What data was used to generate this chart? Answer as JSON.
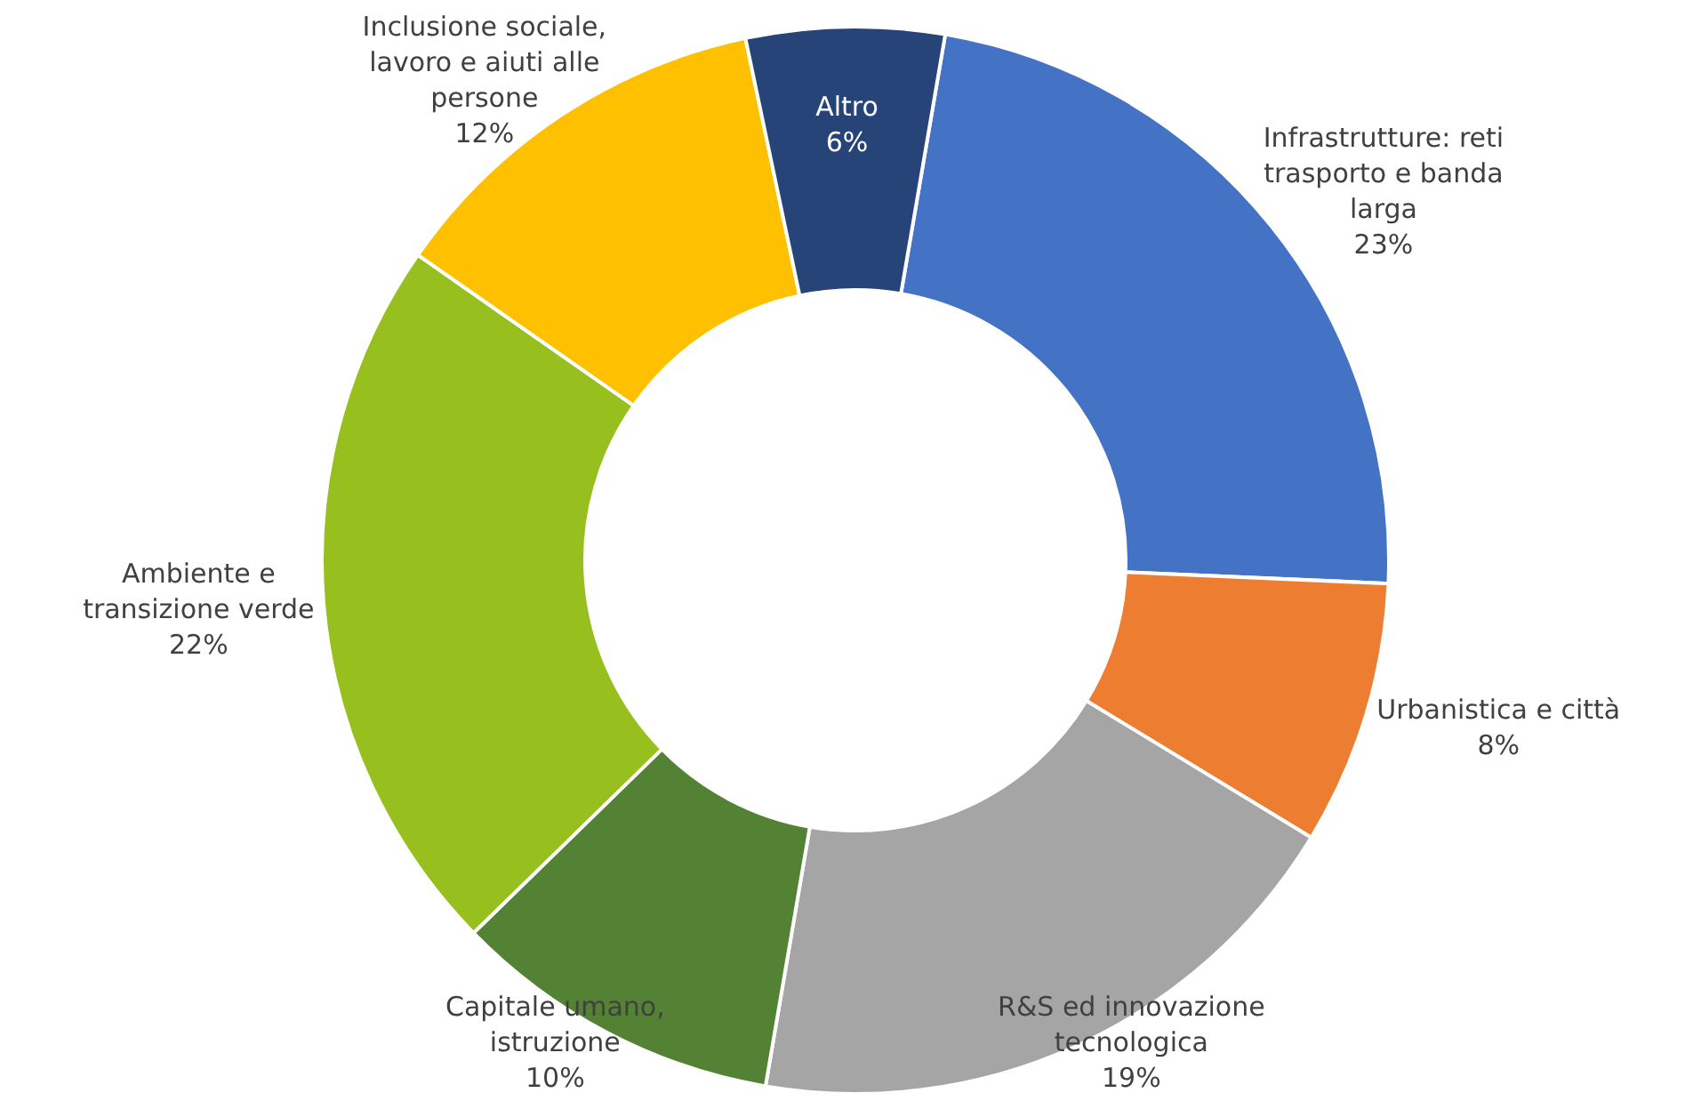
{
  "chart_data": {
    "type": "donut",
    "categories": [
      "Infrastrutture: reti trasporto e banda larga",
      "Urbanistica e città",
      "R&S ed innovazione tecnologica",
      "Capitale umano, istruzione",
      "Ambiente e transizione verde",
      "Inclusione sociale, lavoro e aiuti alle persone",
      "Altro"
    ],
    "values": [
      23,
      8,
      19,
      10,
      22,
      12,
      6
    ],
    "colors": [
      "#4472c4",
      "#ed7d31",
      "#a5a5a5",
      "#548235",
      "#97c01f",
      "#ffc000",
      "#264478"
    ],
    "value_labels": [
      "23%",
      "8%",
      "19%",
      "10%",
      "22%",
      "12%",
      "6%"
    ]
  }
}
